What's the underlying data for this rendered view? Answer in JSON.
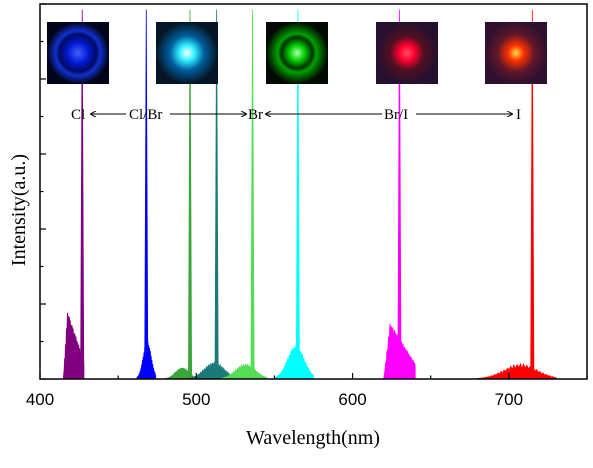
{
  "chart_data": {
    "type": "line",
    "xlabel": "Wavelength(nm)",
    "ylabel": "Intensity(a.u.)",
    "xlim": [
      400,
      750
    ],
    "ylim": [
      0,
      1
    ],
    "xticks": [
      400,
      500,
      600,
      700
    ],
    "show_y_tick_labels": false,
    "grid": false,
    "legend": "none",
    "series": [
      {
        "color": "#800080",
        "peak_x": 427,
        "peak_y": 0.985,
        "base_start": 415,
        "base_end": 428,
        "base_y": 0.18
      },
      {
        "color": "#0000ff",
        "peak_x": 468,
        "peak_y": 0.985,
        "base_start": 462,
        "base_end": 474,
        "base_y": 0.1
      },
      {
        "color": "#3aa63a",
        "peak_x": 496,
        "peak_y": 0.985,
        "base_start": 480,
        "base_end": 500,
        "base_y": 0.03
      },
      {
        "color": "#1a7a7a",
        "peak_x": 513,
        "peak_y": 0.985,
        "base_start": 495,
        "base_end": 525,
        "base_y": 0.045
      },
      {
        "color": "#55dd55",
        "peak_x": 536,
        "peak_y": 0.985,
        "base_start": 515,
        "base_end": 545,
        "base_y": 0.04
      },
      {
        "color": "#00ffff",
        "peak_x": 565,
        "peak_y": 0.985,
        "base_start": 550,
        "base_end": 575,
        "base_y": 0.09
      },
      {
        "color": "#ff00ff",
        "peak_x": 630,
        "peak_y": 0.985,
        "base_start": 620,
        "base_end": 640,
        "base_y": 0.15
      },
      {
        "color": "#ff0000",
        "peak_x": 715,
        "peak_y": 0.985,
        "base_start": 680,
        "base_end": 730,
        "base_y": 0.04
      }
    ],
    "annotations": {
      "cl": "Cl",
      "cl_br": "Cl/Br",
      "br": "Br",
      "br_i": "Br/I",
      "i": "I"
    },
    "insets": [
      {
        "color": "#0020ff"
      },
      {
        "color": "#00e0ff"
      },
      {
        "color": "#00c000"
      },
      {
        "color": "#ff0030"
      },
      {
        "color": "#ff3000"
      }
    ]
  }
}
